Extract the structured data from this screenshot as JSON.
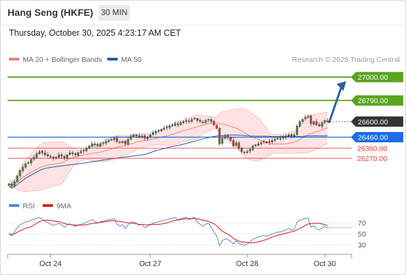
{
  "header": {
    "title": "Hang Seng (HKFE)",
    "interval": "30 MIN"
  },
  "timestamp": "Thursday, October 30, 2025 4:23:17 AM CET",
  "colors": {
    "resistance": "#5aa51e",
    "support": "#e53935",
    "pivot": "#1a6ee6",
    "last": "#333333",
    "ma20": "#f08080",
    "ma50": "#2a5a9a",
    "rsi": "#5b87d6",
    "rsi_ma": "#dd2222",
    "candle_up": "#3a8a3a",
    "candle_down": "#c0392b",
    "arrow": "#2c5f9e"
  },
  "chart_data": [
    {
      "type": "candlestick",
      "legend": [
        {
          "label": "MA 20 + Bollinger Bands",
          "color": "#f08080"
        },
        {
          "label": "MA 50",
          "color": "#2a5a9a"
        }
      ],
      "credit": "Research © 2025 Trading Central",
      "x_ticks": [
        "Oct 24",
        "Oct 27",
        "Oct 28",
        "Oct 30"
      ],
      "ylim": [
        25900,
        27100
      ],
      "levels": [
        {
          "label": "27000.00",
          "value": 27000,
          "kind": "resistance"
        },
        {
          "label": "26790.00",
          "value": 26790,
          "kind": "resistance"
        },
        {
          "label": "26600.00",
          "value": 26600,
          "kind": "last"
        },
        {
          "label": "26460.00",
          "value": 26460,
          "kind": "pivot"
        },
        {
          "label": "26360.00",
          "value": 26360,
          "kind": "support"
        },
        {
          "label": "26270.00",
          "value": 26270,
          "kind": "support"
        }
      ],
      "close": [
        26040,
        26020,
        26060,
        26110,
        26160,
        26190,
        26220,
        26230,
        26260,
        26280,
        26310,
        26330,
        26320,
        26300,
        26290,
        26280,
        26270,
        26280,
        26300,
        26290,
        26270,
        26300,
        26320,
        26310,
        26300,
        26320,
        26330,
        26340,
        26360,
        26380,
        26400,
        26390,
        26380,
        26400,
        26410,
        26420,
        26430,
        26440,
        26450,
        26420,
        26410,
        26420,
        26400,
        26440,
        26470,
        26480,
        26470,
        26460,
        26470,
        26450,
        26460,
        26480,
        26500,
        26510,
        26520,
        26530,
        26540,
        26550,
        26560,
        26570,
        26580,
        26570,
        26590,
        26600,
        26610,
        26600,
        26620,
        26630,
        26610,
        26600,
        26590,
        26610,
        26620,
        26600,
        26570,
        26540,
        26400,
        26450,
        26470,
        26460,
        26430,
        26380,
        26410,
        26360,
        26330,
        26320,
        26330,
        26350,
        26380,
        26390,
        26400,
        26410,
        26420,
        26410,
        26420,
        26430,
        26440,
        26450,
        26450,
        26460,
        26470,
        26480,
        26470,
        26480,
        26560,
        26600,
        26620,
        26640,
        26650,
        26580,
        26600,
        26570,
        26560,
        26590,
        26610,
        26600
      ]
    },
    {
      "type": "line",
      "legend": [
        {
          "label": "RSI",
          "color": "#5b87d6"
        },
        {
          "label": "9MA",
          "color": "#dd2222"
        }
      ],
      "ylim": [
        15,
        85
      ],
      "y_ticks": [
        70,
        50,
        30
      ]
    }
  ]
}
